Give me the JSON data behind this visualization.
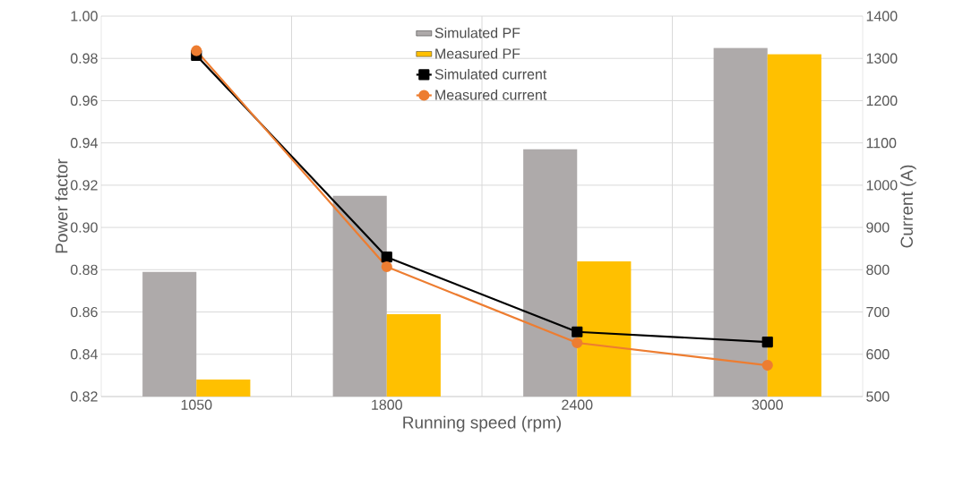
{
  "chart_data": {
    "type": "bar",
    "xlabel": "Running speed (rpm)",
    "ylabel": "Power factor",
    "y2label": "Current (A)",
    "categories": [
      "1050",
      "1800",
      "2400",
      "3000"
    ],
    "series": [
      {
        "name": "Simulated PF",
        "color": "#aeaaaa",
        "values": [
          0.879,
          0.915,
          0.937,
          0.985
        ]
      },
      {
        "name": "Measured PF",
        "color": "#ffc000",
        "values": [
          0.828,
          0.859,
          0.884,
          0.982
        ]
      },
      {
        "name": "Simulated current",
        "type": "line",
        "axis": "y2",
        "color": "#000000",
        "marker": "square",
        "values": [
          1307,
          830,
          653,
          629
        ]
      },
      {
        "name": "Measured current",
        "type": "line",
        "axis": "y2",
        "color": "#ed7d31",
        "marker": "circle",
        "values": [
          1318,
          807,
          627,
          574
        ]
      }
    ],
    "ylim": [
      0.82,
      1.0
    ],
    "yticks": [
      {
        "value": 0.82,
        "label": "0.82"
      },
      {
        "value": 0.84,
        "label": "0.84"
      },
      {
        "value": 0.86,
        "label": "0.86"
      },
      {
        "value": 0.88,
        "label": "0.88"
      },
      {
        "value": 0.9,
        "label": "0.90"
      },
      {
        "value": 0.92,
        "label": "0.92"
      },
      {
        "value": 0.94,
        "label": "0.94"
      },
      {
        "value": 0.96,
        "label": "0.96"
      },
      {
        "value": 0.98,
        "label": "0.98"
      },
      {
        "value": 1.0,
        "label": "1.00"
      }
    ],
    "y2lim": [
      500,
      1400
    ],
    "y2ticks": [
      500,
      600,
      700,
      800,
      900,
      1000,
      1100,
      1200,
      1300,
      1400
    ],
    "grid": true,
    "legend": "top"
  }
}
